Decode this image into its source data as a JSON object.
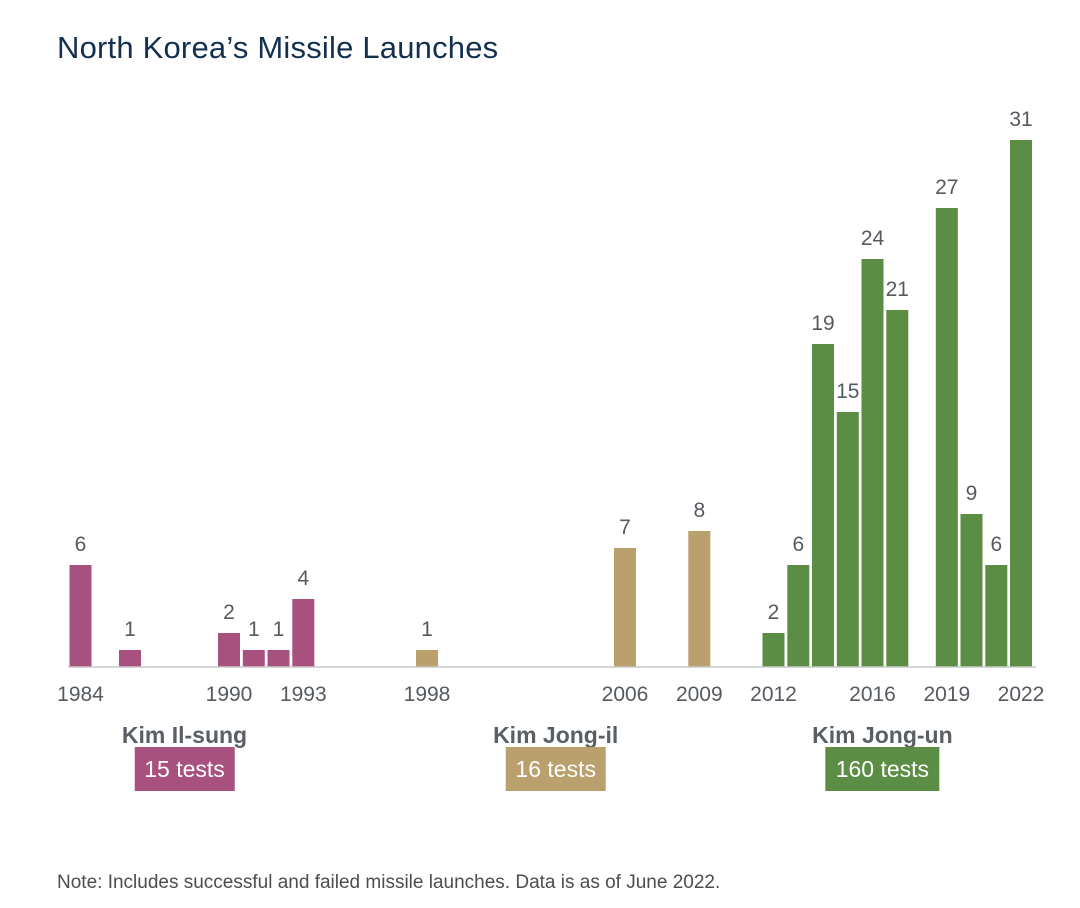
{
  "chart_data": {
    "type": "bar",
    "title": "North Korea’s Missile Launches",
    "xlabel": "",
    "ylabel": "",
    "ylim": [
      0,
      31
    ],
    "grid": false,
    "legend": "none",
    "x_range": [
      1984,
      2022
    ],
    "tick_labels": [
      "1984",
      "1990",
      "1993",
      "1998",
      "2006",
      "2009",
      "2012",
      "2016",
      "2019",
      "2022"
    ],
    "series": [
      {
        "name": "Kim Il-sung",
        "color": "#a8517f",
        "points": [
          {
            "year": 1984,
            "value": 6
          },
          {
            "year": 1986,
            "value": 1
          },
          {
            "year": 1990,
            "value": 2
          },
          {
            "year": 1991,
            "value": 1
          },
          {
            "year": 1992,
            "value": 1
          },
          {
            "year": 1993,
            "value": 4
          }
        ]
      },
      {
        "name": "Kim Jong-il",
        "color": "#b9a06c",
        "points": [
          {
            "year": 1998,
            "value": 1
          },
          {
            "year": 2006,
            "value": 7
          },
          {
            "year": 2009,
            "value": 8
          }
        ]
      },
      {
        "name": "Kim Jong-un",
        "color": "#5b8d44",
        "points": [
          {
            "year": 2012,
            "value": 2
          },
          {
            "year": 2013,
            "value": 6
          },
          {
            "year": 2014,
            "value": 19
          },
          {
            "year": 2015,
            "value": 15
          },
          {
            "year": 2016,
            "value": 24
          },
          {
            "year": 2017,
            "value": 21
          },
          {
            "year": 2019,
            "value": 27
          },
          {
            "year": 2020,
            "value": 9
          },
          {
            "year": 2021,
            "value": 6
          },
          {
            "year": 2022,
            "value": 31
          }
        ]
      }
    ],
    "leaders": [
      {
        "name": "Kim Il-sung",
        "tests": "15 tests",
        "color": "#a8517f",
        "center_year": 1988.2
      },
      {
        "name": "Kim Jong-il",
        "tests": "16 tests",
        "color": "#b9a06c",
        "center_year": 2003.2
      },
      {
        "name": "Kim Jong-un",
        "tests": "160 tests",
        "color": "#5b8d44",
        "center_year": 2016.4
      }
    ],
    "note": "Note: Includes successful and failed missile launches. Data is as of June 2022."
  }
}
